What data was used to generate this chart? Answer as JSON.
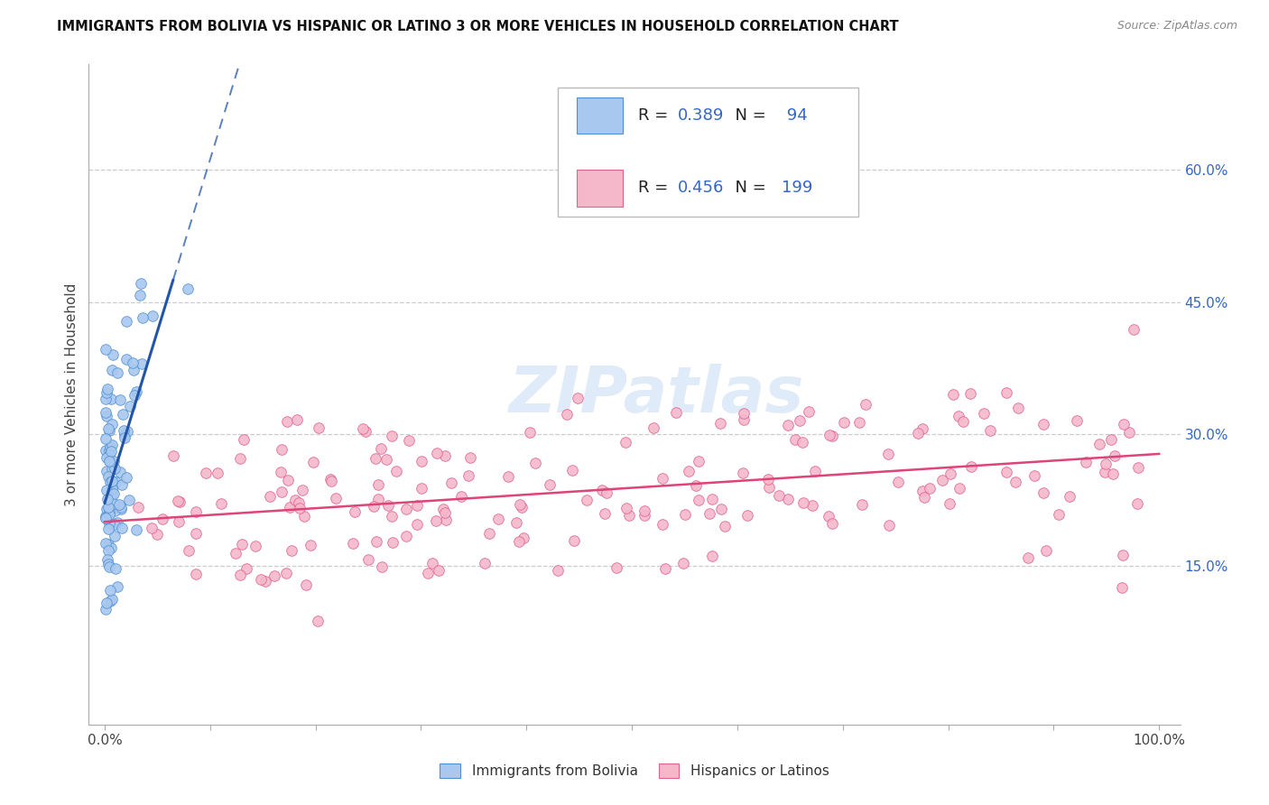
{
  "title": "IMMIGRANTS FROM BOLIVIA VS HISPANIC OR LATINO 3 OR MORE VEHICLES IN HOUSEHOLD CORRELATION CHART",
  "source": "Source: ZipAtlas.com",
  "ylabel": "3 or more Vehicles in Household",
  "blue_R": 0.389,
  "blue_N": 94,
  "pink_R": 0.456,
  "pink_N": 199,
  "blue_color": "#A8C8F0",
  "pink_color": "#F5B8CB",
  "blue_edge_color": "#5090D0",
  "pink_edge_color": "#E06090",
  "blue_line_color": "#2255AA",
  "pink_line_color": "#DD4477",
  "right_ytick_vals": [
    0.15,
    0.3,
    0.45,
    0.6
  ],
  "right_ytick_labels": [
    "15.0%",
    "30.0%",
    "45.0%",
    "60.0%"
  ],
  "watermark": "ZIPatlas",
  "legend_label_blue": "Immigrants from Bolivia",
  "legend_label_pink": "Hispanics or Latinos"
}
